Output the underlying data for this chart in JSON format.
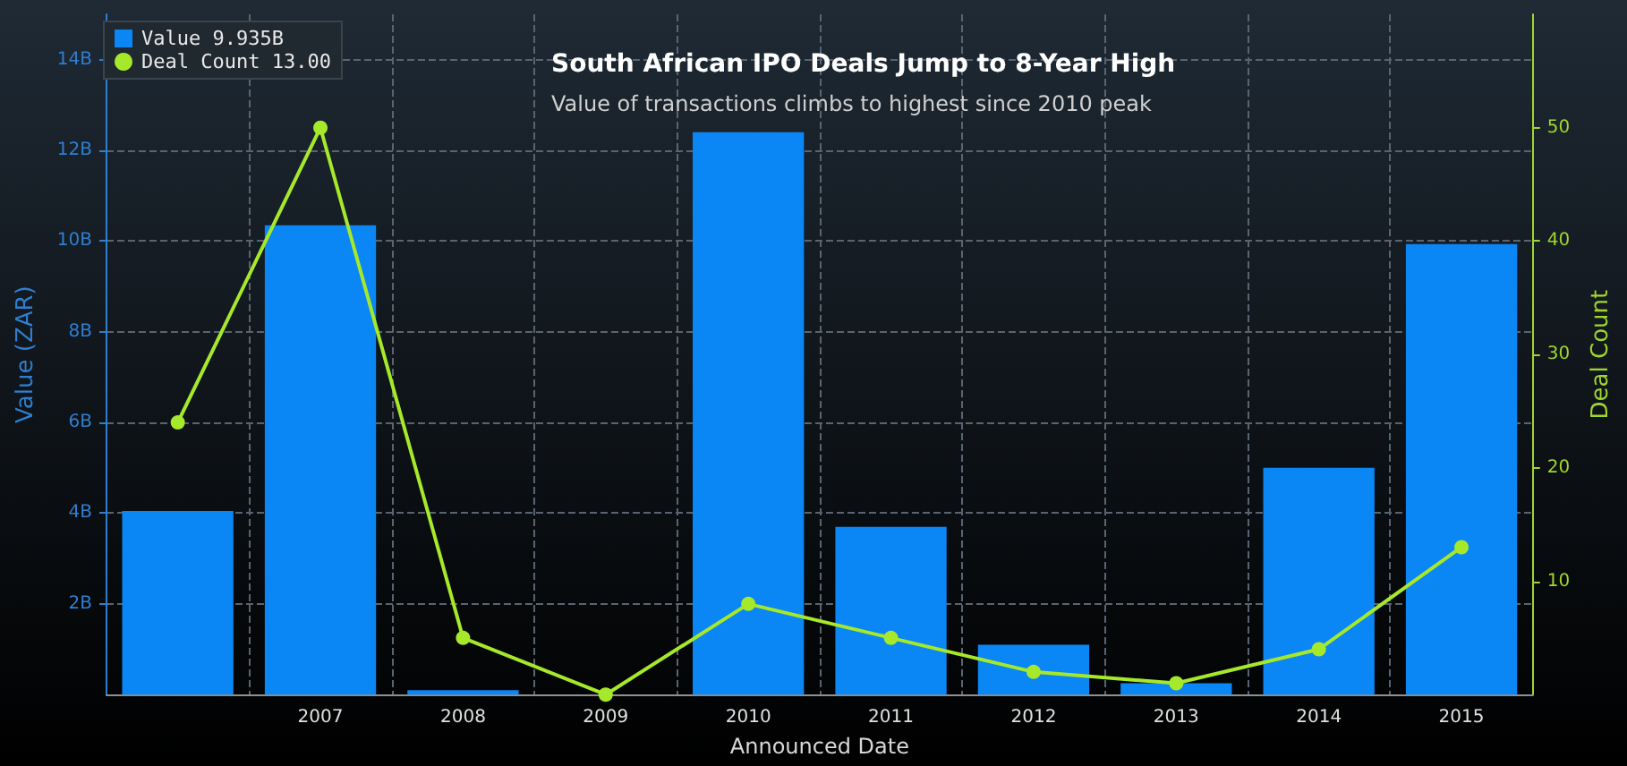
{
  "chart_data": {
    "type": "bar",
    "title": "South African IPO Deals Jump to 8-Year High",
    "subtitle": "Value of transactions climbs to highest since 2010 peak",
    "xlabel": "Announced Date",
    "ylabel": "Value (ZAR)",
    "y2label": "Deal Count",
    "categories": [
      null,
      "2007",
      "2008",
      "2009",
      "2010",
      "2011",
      "2012",
      "2013",
      "2014",
      "2015"
    ],
    "series": [
      {
        "name": "Value 9.935B",
        "color": "#0a86f5",
        "values": [
          4.05,
          10.35,
          0.1,
          0,
          12.4,
          3.7,
          1.1,
          0.25,
          5.0,
          9.935
        ]
      },
      {
        "name": "Deal Count 13.00",
        "type": "line",
        "axis": "y2",
        "color": "#a6e82a",
        "values": [
          24,
          50,
          5,
          0,
          8,
          5,
          2,
          1,
          4,
          13
        ]
      }
    ],
    "ylim": [
      0,
      15
    ],
    "yticks": [
      {
        "value": 2,
        "label": "2B"
      },
      {
        "value": 4,
        "label": "4B"
      },
      {
        "value": 6,
        "label": "6B"
      },
      {
        "value": 8,
        "label": "8B"
      },
      {
        "value": 10,
        "label": "10B"
      },
      {
        "value": 12,
        "label": "12B"
      },
      {
        "value": 14,
        "label": "14B"
      }
    ],
    "y2lim": [
      0,
      60
    ],
    "y2ticks": [
      10,
      20,
      30,
      40,
      50
    ],
    "grid": true,
    "legend": "top left",
    "marker": "circle",
    "line_style": "solid"
  }
}
